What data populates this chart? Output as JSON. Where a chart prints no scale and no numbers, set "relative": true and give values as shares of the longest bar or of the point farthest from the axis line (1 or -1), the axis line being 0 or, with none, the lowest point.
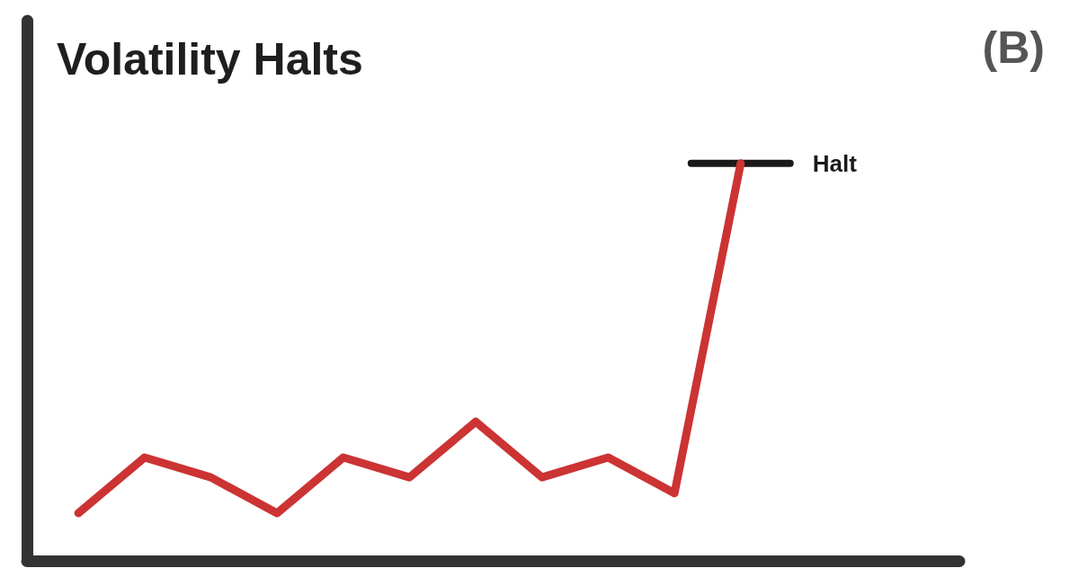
{
  "chart_data": {
    "type": "line",
    "title": "Volatility Halts",
    "annotations": [
      "(B)"
    ],
    "relative": true,
    "categories": [
      null,
      null,
      null,
      null,
      null,
      null,
      null,
      null,
      null,
      null,
      null
    ],
    "series": [
      {
        "color": "#cc3333",
        "values": [
          0.12,
          0.26,
          0.21,
          0.12,
          0.26,
          0.21,
          0.35,
          0.21,
          0.26,
          0.17,
          1
        ]
      }
    ],
    "ref_lines": [
      {
        "axis": "y",
        "value": 1,
        "label": "Halt",
        "color": "#1a1a1a"
      }
    ],
    "grid": false,
    "line_style": "solid"
  }
}
